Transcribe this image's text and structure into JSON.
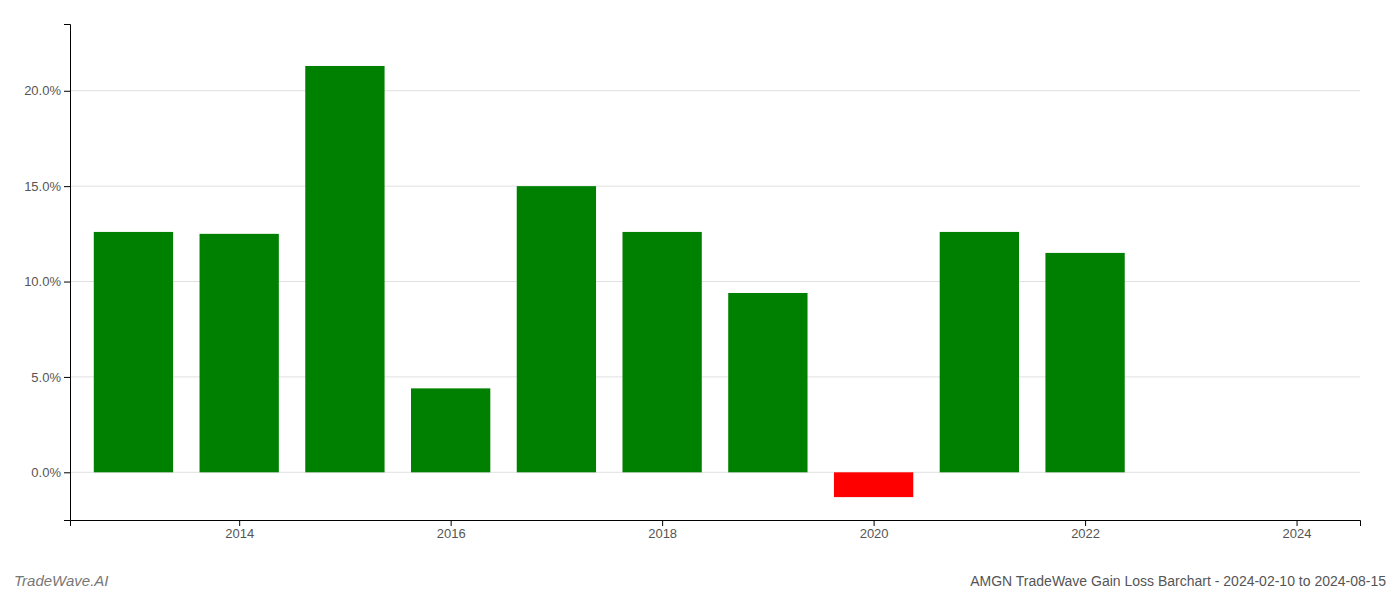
{
  "chart_data": {
    "type": "bar",
    "title": "AMGN TradeWave Gain Loss Barchart - 2024-02-10 to 2024-08-15",
    "annotations": [
      "TradeWave.AI"
    ],
    "x": [
      2013,
      2014,
      2015,
      2016,
      2017,
      2018,
      2019,
      2020,
      2021,
      2022,
      2023
    ],
    "values": [
      0.126,
      0.125,
      0.213,
      0.044,
      0.15,
      0.126,
      0.094,
      -0.013,
      0.126,
      0.115,
      0.0
    ],
    "colors": [
      "#008000",
      "#008000",
      "#008000",
      "#008000",
      "#008000",
      "#008000",
      "#008000",
      "#ff0000",
      "#008000",
      "#008000",
      "#008000"
    ],
    "xlim": [
      2012.4,
      2024.6
    ],
    "xticks": [
      2014,
      2016,
      2018,
      2020,
      2022,
      2024
    ],
    "ylim": [
      -0.025,
      0.235
    ],
    "yticks": [
      {
        "value": 0.0,
        "label": "0.0%"
      },
      {
        "value": 0.05,
        "label": "5.0%"
      },
      {
        "value": 0.1,
        "label": "10.0%"
      },
      {
        "value": 0.15,
        "label": "15.0%"
      },
      {
        "value": 0.2,
        "label": "20.0%"
      }
    ],
    "grid": true
  }
}
